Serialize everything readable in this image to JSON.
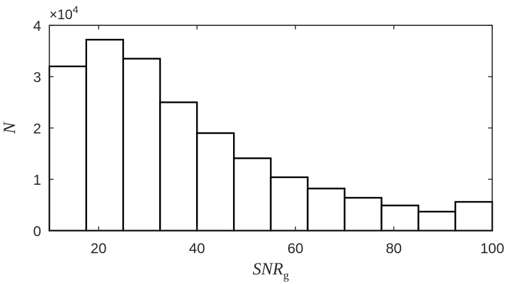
{
  "chart_data": {
    "type": "bar",
    "subtype": "histogram",
    "bin_edges": [
      10,
      17.5,
      25,
      32.5,
      40,
      47.5,
      55,
      62.5,
      70,
      77.5,
      85,
      92.5,
      100
    ],
    "values": [
      32000,
      37200,
      33500,
      25000,
      19000,
      14100,
      10400,
      8200,
      6400,
      4900,
      3700,
      5600
    ],
    "xlabel": "SNR",
    "xlabel_subscript": "g",
    "ylabel": "N",
    "xlim": [
      10,
      100
    ],
    "ylim": [
      0,
      40000
    ],
    "xticks": [
      20,
      40,
      60,
      80,
      100
    ],
    "yticks": [
      0,
      10000,
      20000,
      30000,
      40000
    ],
    "ytick_labels": [
      "0",
      "1",
      "2",
      "3",
      "4"
    ],
    "y_multiplier_base": "×10",
    "y_multiplier_power": "4",
    "grid": false,
    "bar_fill": "#ffffff",
    "bar_edge": "#000000",
    "axis_color": "#262626"
  }
}
